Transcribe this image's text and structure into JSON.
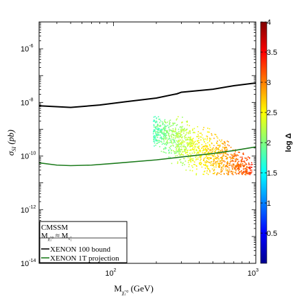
{
  "chart_data": {
    "type": "scatter",
    "title": "",
    "xlabel": "M_{χ̃₁⁰} (GeV)",
    "ylabel": "σ_{SI} (pb)",
    "xlim": [
      30,
      1000
    ],
    "ylim": [
      1e-14,
      1e-05
    ],
    "xscale": "log",
    "yscale": "log",
    "x_ticks": [
      {
        "value": 100,
        "label": "10",
        "exp": "2"
      },
      {
        "value": 1000,
        "label": "10",
        "exp": "3"
      }
    ],
    "y_ticks": [
      {
        "value": 1e-14,
        "label": "10",
        "exp": "-14"
      },
      {
        "value": 1e-12,
        "label": "10",
        "exp": "-12"
      },
      {
        "value": 1e-10,
        "label": "10",
        "exp": "-10"
      },
      {
        "value": 1e-08,
        "label": "10",
        "exp": "-8"
      },
      {
        "value": 1e-06,
        "label": "10",
        "exp": "-6"
      }
    ],
    "colorbar": {
      "label": "log Δ",
      "min": 0,
      "max": 4,
      "ticks": [
        "0.5",
        "1",
        "1.5",
        "2",
        "2.5",
        "3",
        "3.5",
        "4"
      ],
      "tick_values": [
        0.5,
        1,
        1.5,
        2,
        2.5,
        3,
        3.5,
        4
      ]
    },
    "legend": {
      "placement": "bottom-left",
      "title": "CMSSM",
      "subtitle": "M_{χ̃₁⁰} ≈ M_{τ̃₁}",
      "entries": [
        {
          "label": "XENON 100 bound",
          "color": "#000000"
        },
        {
          "label": "XENON 1T projection",
          "color": "#1a7a1a"
        }
      ]
    },
    "series": [
      {
        "name": "XENON 100 bound",
        "color": "#000000",
        "x": [
          30,
          50,
          80,
          120,
          200,
          280,
          300,
          500,
          700,
          1000
        ],
        "y": [
          7.5e-09,
          6.5e-09,
          8e-09,
          1.05e-08,
          1.45e-08,
          2.1e-08,
          2.4e-08,
          3.1e-08,
          4.2e-08,
          5.3e-08
        ]
      },
      {
        "name": "XENON 1T projection",
        "color": "#1a7a1a",
        "x": [
          30,
          40,
          50,
          70,
          100,
          200,
          300,
          500,
          700,
          1000
        ],
        "y": [
          5.6e-11,
          4.6e-11,
          4.4e-11,
          4.6e-11,
          5.3e-11,
          7.2e-11,
          9.2e-11,
          1.25e-10,
          1.6e-10,
          2.2e-10
        ]
      }
    ],
    "scatter_cloud": {
      "x_range": [
        190,
        950
      ],
      "y_range": [
        2e-11,
        3e-09
      ],
      "log_delta_range": [
        1.8,
        3.3
      ]
    }
  },
  "page": {
    "legend_title": "CMSSM",
    "legend_subtitle": "M_{χ̃₁⁰} ≈ M_{τ̃₁}"
  }
}
